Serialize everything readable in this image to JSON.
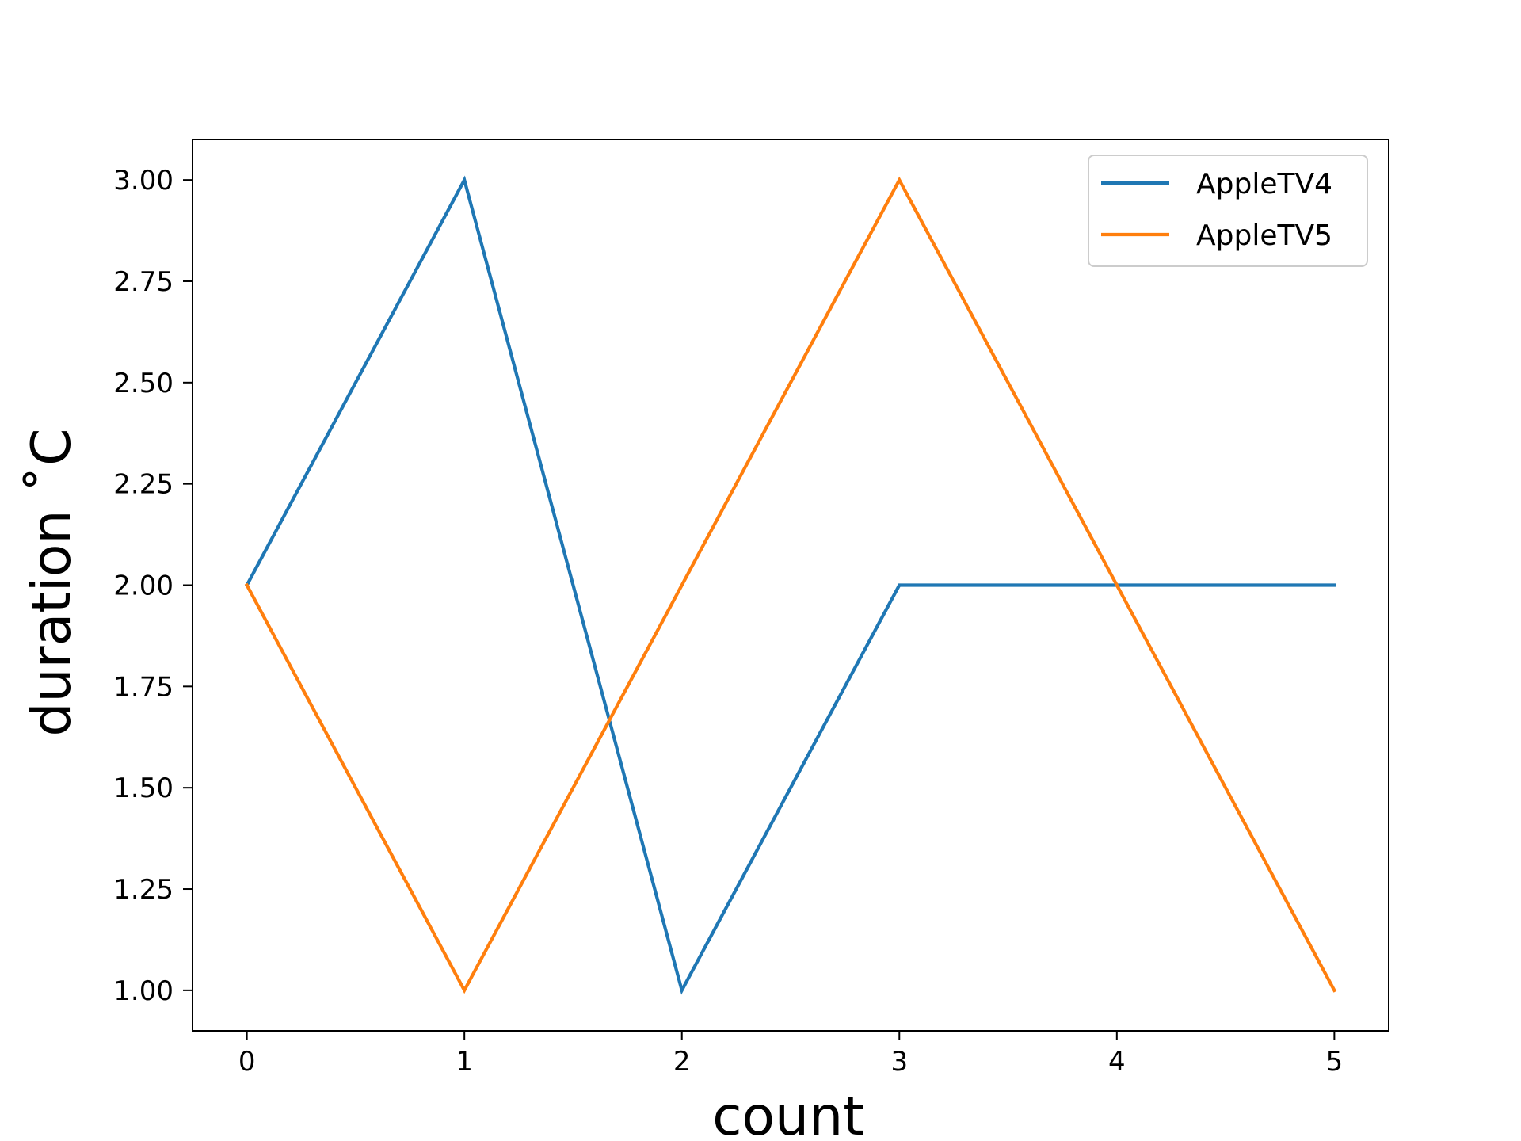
{
  "chart_data": {
    "type": "line",
    "x": [
      0,
      1,
      2,
      3,
      4,
      5
    ],
    "series": [
      {
        "name": "AppleTV4",
        "values": [
          2.0,
          3.0,
          1.0,
          2.0,
          2.0,
          2.0
        ],
        "color": "#1f77b4"
      },
      {
        "name": "AppleTV5",
        "values": [
          2.0,
          1.0,
          2.0,
          3.0,
          2.0,
          1.0
        ],
        "color": "#ff7f0e"
      }
    ],
    "xlabel": "count",
    "ylabel": "duration $^\\circ$C",
    "ylabel_display": "duration ˚C",
    "xlim": [
      -0.25,
      5.25
    ],
    "ylim": [
      0.9,
      3.1
    ],
    "xticks": [
      0,
      1,
      2,
      3,
      4,
      5
    ],
    "xtick_labels": [
      "0",
      "1",
      "2",
      "3",
      "4",
      "5"
    ],
    "yticks": [
      1.0,
      1.25,
      1.5,
      1.75,
      2.0,
      2.25,
      2.5,
      2.75,
      3.0
    ],
    "ytick_labels": [
      "1.00",
      "1.25",
      "1.50",
      "1.75",
      "2.00",
      "2.25",
      "2.50",
      "2.75",
      "3.00"
    ],
    "grid": false,
    "legend_position": "upper right"
  }
}
